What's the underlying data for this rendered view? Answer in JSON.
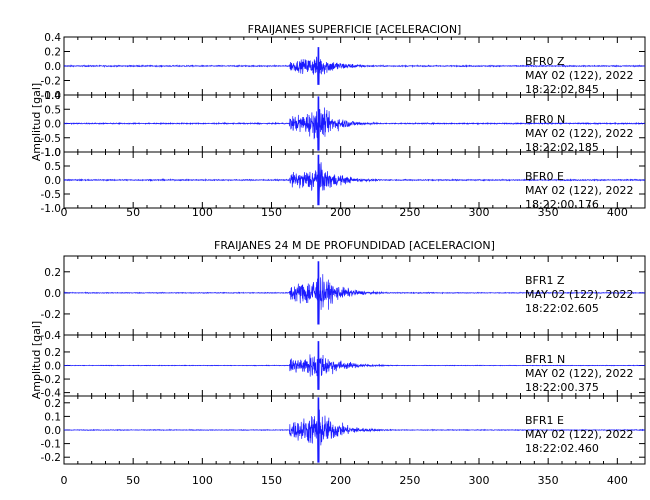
{
  "chart_data": [
    {
      "type": "line",
      "title": "FRAIJANES SUPERFICIE [ACELERACION]",
      "ylabel": "Amplitud [gal]",
      "xlim": [
        0,
        420
      ],
      "x_ticks": [
        0,
        50,
        100,
        150,
        200,
        250,
        300,
        350,
        400
      ],
      "series": [
        {
          "station": "BFR0",
          "component": "Z",
          "date": "MAY 02 (122), 2022",
          "time": "18:22:02.845",
          "ylim": [
            -0.4,
            0.4
          ],
          "y_ticks": [
            0.4,
            0.2,
            0.0,
            -0.2,
            -0.4
          ],
          "y_tick_labels": [
            "0.4",
            "0.2",
            "0.0",
            "-0.2",
            "-0.4"
          ],
          "noise": 0.012,
          "peak": 0.26,
          "onset": 163,
          "max_time": 184
        },
        {
          "station": "BFR0",
          "component": "N",
          "date": "MAY 02 (122), 2022",
          "time": "18:22:02.185",
          "ylim": [
            -1.0,
            1.0
          ],
          "y_ticks": [
            1.0,
            0.5,
            0.0,
            -0.5,
            -1.0
          ],
          "y_tick_labels": [
            "1.0",
            "0.5",
            "0.0",
            "-0.5",
            "-1.0"
          ],
          "noise": 0.03,
          "peak": 0.95,
          "onset": 163,
          "max_time": 184
        },
        {
          "station": "BFR0",
          "component": "E",
          "date": "MAY 02 (122), 2022",
          "time": "18:22:00.176",
          "ylim": [
            -1.0,
            1.0
          ],
          "y_ticks": [
            1.0,
            0.5,
            0.0,
            -0.5,
            -1.0
          ],
          "y_tick_labels": [
            "1.0",
            "0.5",
            "0.0",
            "-0.5",
            "-1.0"
          ],
          "noise": 0.03,
          "peak": 0.9,
          "onset": 163,
          "max_time": 184
        }
      ]
    },
    {
      "type": "line",
      "title": "FRAIJANES 24 M DE PROFUNDIDAD [ACELERACION]",
      "ylabel": "Amplitud [gal]",
      "xlim": [
        0,
        420
      ],
      "x_ticks": [
        0,
        50,
        100,
        150,
        200,
        250,
        300,
        350,
        400
      ],
      "series": [
        {
          "station": "BFR1",
          "component": "Z",
          "date": "MAY 02 (122), 2022",
          "time": "18:22:02.605",
          "ylim": [
            -0.4,
            0.35
          ],
          "y_ticks": [
            0.2,
            0.0,
            -0.2,
            -0.4
          ],
          "y_tick_labels": [
            "0.2",
            "0.0",
            "-0.2",
            "-0.4"
          ],
          "noise": 0.006,
          "peak": 0.3,
          "onset": 163,
          "max_time": 184
        },
        {
          "station": "BFR1",
          "component": "N",
          "date": "MAY 02 (122), 2022",
          "time": "18:22:00.375",
          "ylim": [
            -0.45,
            0.45
          ],
          "y_ticks": [
            0.2,
            0.0,
            -0.2,
            -0.4
          ],
          "y_tick_labels": [
            "0.2",
            "0.0",
            "-0.2",
            "-0.4"
          ],
          "noise": 0.006,
          "peak": 0.36,
          "onset": 163,
          "max_time": 184
        },
        {
          "station": "BFR1",
          "component": "E",
          "date": "MAY 02 (122), 2022",
          "time": "18:22:02.460",
          "ylim": [
            -0.25,
            0.25
          ],
          "y_ticks": [
            0.2,
            0.1,
            0.0,
            -0.1,
            -0.2
          ],
          "y_tick_labels": [
            "0.2",
            "0.1",
            "0.0",
            "-0.1",
            "-0.2"
          ],
          "noise": 0.004,
          "peak": 0.24,
          "onset": 163,
          "max_time": 184
        }
      ]
    }
  ],
  "colors": {
    "trace": "#1a1aff",
    "axis": "#000000"
  }
}
